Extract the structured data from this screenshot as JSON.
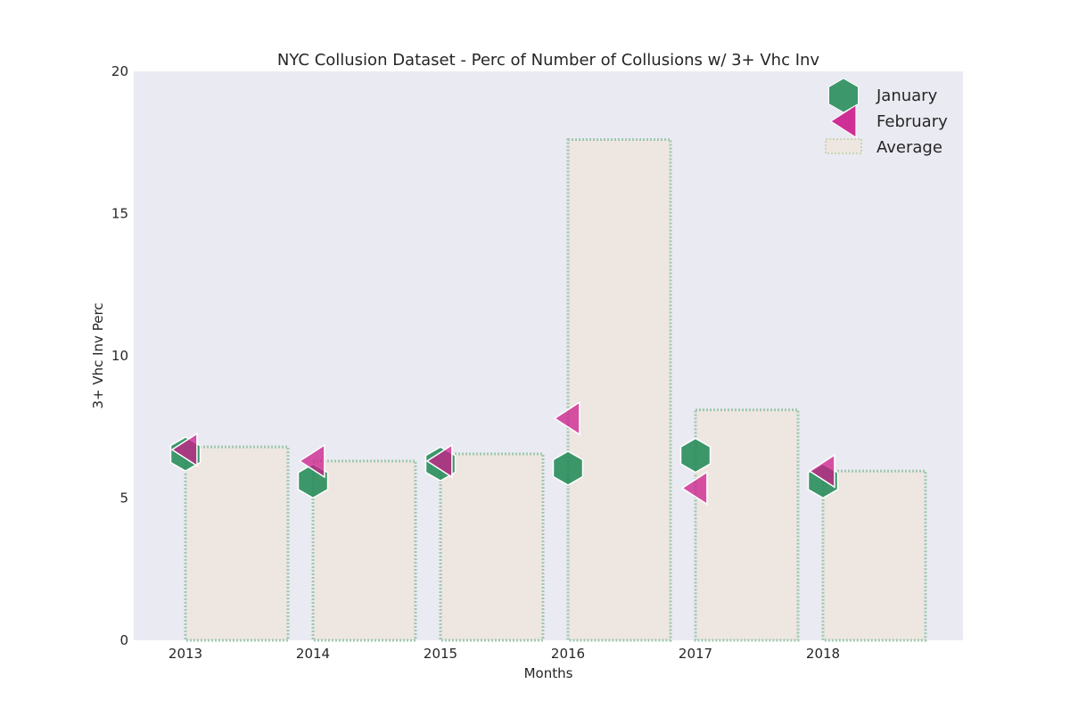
{
  "chart_data": {
    "type": "bar",
    "title": "NYC Collusion Dataset - Perc of Number of Collusions w/ 3+ Vhc Inv",
    "xlabel": "Months",
    "ylabel": "3+ Vhc Inv Perc",
    "categories": [
      "2013",
      "2014",
      "2015",
      "2016",
      "2017",
      "2018"
    ],
    "ylim": [
      0,
      20
    ],
    "yticks": [
      "0",
      "5",
      "10",
      "15",
      "20"
    ],
    "grid": false,
    "legend_position": "top-right",
    "bars": {
      "name": "Average",
      "values": [
        6.8,
        6.3,
        6.55,
        17.6,
        8.1,
        5.95
      ],
      "fill_color": "#ede6e1",
      "edge_color": "#9fc8b0"
    },
    "series": [
      {
        "name": "January",
        "marker": "hexagon",
        "color": "#238b57",
        "values": [
          6.55,
          5.6,
          6.2,
          6.05,
          6.5,
          5.6
        ]
      },
      {
        "name": "February",
        "marker": "left-triangle",
        "color": "#cc1b8a",
        "values": [
          6.7,
          6.3,
          6.3,
          7.8,
          5.35,
          5.95
        ]
      }
    ],
    "background_color": "#eaeaf2"
  }
}
